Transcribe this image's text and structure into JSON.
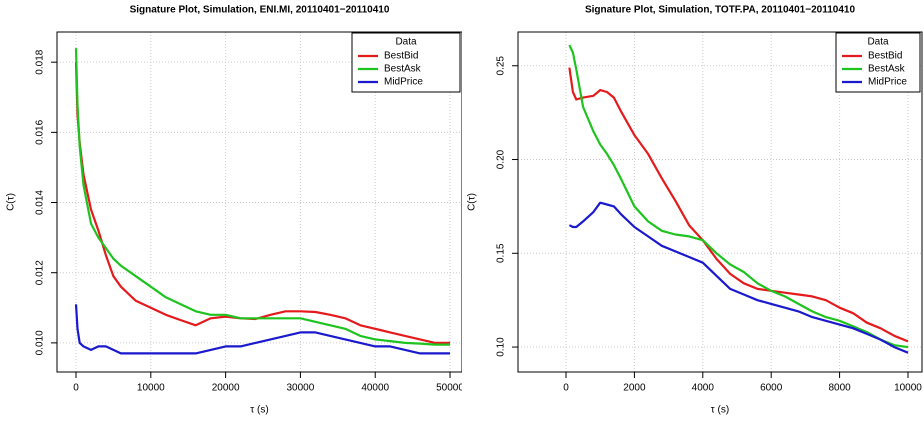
{
  "chart_data": [
    {
      "type": "line",
      "title": "Signature Plot, Simulation, ENI.MI, 20110401−20110410",
      "x_label": "τ (s)",
      "y_label": "C(τ)",
      "legend_title": "Data",
      "legend_position": "top-right",
      "grid": true,
      "x": [
        0,
        200,
        500,
        1000,
        2000,
        3000,
        4000,
        5000,
        6000,
        8000,
        10000,
        12000,
        14000,
        16000,
        18000,
        20000,
        22000,
        24000,
        26000,
        28000,
        30000,
        32000,
        34000,
        36000,
        38000,
        40000,
        42000,
        44000,
        46000,
        48000,
        50000
      ],
      "series": [
        {
          "name": "BestBid",
          "color": "#e41a1c",
          "values": [
            0.018,
            0.0165,
            0.0157,
            0.0148,
            0.0138,
            0.0132,
            0.0125,
            0.0119,
            0.0116,
            0.0112,
            0.011,
            0.0108,
            0.01065,
            0.0105,
            0.0107,
            0.01075,
            0.0107,
            0.01068,
            0.0108,
            0.0109,
            0.0109,
            0.01088,
            0.0108,
            0.0107,
            0.0105,
            0.0104,
            0.0103,
            0.0102,
            0.0101,
            0.01,
            0.01
          ]
        },
        {
          "name": "BestAsk",
          "color": "#1fc31f",
          "values": [
            0.0184,
            0.0168,
            0.0156,
            0.0145,
            0.0134,
            0.013,
            0.0127,
            0.0124,
            0.0122,
            0.0119,
            0.0116,
            0.0113,
            0.0111,
            0.0109,
            0.0108,
            0.0108,
            0.0107,
            0.0107,
            0.0107,
            0.0107,
            0.0107,
            0.0106,
            0.0105,
            0.0104,
            0.0102,
            0.0101,
            0.01005,
            0.01,
            0.00998,
            0.00995,
            0.00995
          ]
        },
        {
          "name": "MidPrice",
          "color": "#1a1acc",
          "values": [
            0.0111,
            0.0104,
            0.01,
            0.0099,
            0.0098,
            0.0099,
            0.0099,
            0.0098,
            0.0097,
            0.0097,
            0.0097,
            0.0097,
            0.0097,
            0.0097,
            0.0098,
            0.0099,
            0.0099,
            0.01,
            0.0101,
            0.0102,
            0.0103,
            0.0103,
            0.0102,
            0.0101,
            0.01,
            0.0099,
            0.0099,
            0.0098,
            0.0097,
            0.0097,
            0.0097
          ]
        }
      ],
      "xlim": [
        -2540,
        51600
      ],
      "xticks": [
        0,
        10000,
        20000,
        30000,
        40000,
        50000
      ],
      "ylim": [
        0.00917,
        0.01886
      ],
      "yticks": [
        {
          "value": 0.01,
          "label": "0.010"
        },
        0.012,
        0.014,
        0.016,
        0.018
      ]
    },
    {
      "type": "line",
      "title": "Signature Plot, Simulation, TOTF.PA, 20110401−20110410",
      "x_label": "τ (s)",
      "y_label": "C(τ)",
      "legend_title": "Data",
      "legend_position": "top-right",
      "grid": true,
      "x": [
        100,
        200,
        300,
        500,
        800,
        1000,
        1200,
        1400,
        1600,
        2000,
        2400,
        2800,
        3200,
        3600,
        4000,
        4400,
        4800,
        5200,
        5600,
        6000,
        6400,
        6800,
        7200,
        7600,
        8000,
        8400,
        8800,
        9200,
        9600,
        10000
      ],
      "series": [
        {
          "name": "BestBid",
          "color": "#e41a1c",
          "values": [
            0.249,
            0.236,
            0.232,
            0.233,
            0.234,
            0.237,
            0.236,
            0.233,
            0.226,
            0.213,
            0.203,
            0.19,
            0.178,
            0.165,
            0.157,
            0.147,
            0.139,
            0.134,
            0.131,
            0.13,
            0.129,
            0.128,
            0.127,
            0.125,
            0.121,
            0.118,
            0.113,
            0.11,
            0.106,
            0.103
          ]
        },
        {
          "name": "BestAsk",
          "color": "#1fc31f",
          "values": [
            0.261,
            0.257,
            0.248,
            0.228,
            0.215,
            0.208,
            0.203,
            0.197,
            0.19,
            0.175,
            0.167,
            0.162,
            0.16,
            0.159,
            0.157,
            0.15,
            0.144,
            0.14,
            0.134,
            0.13,
            0.127,
            0.123,
            0.119,
            0.116,
            0.114,
            0.111,
            0.108,
            0.104,
            0.101,
            0.1
          ]
        },
        {
          "name": "MidPrice",
          "color": "#1a1acc",
          "values": [
            0.165,
            0.164,
            0.164,
            0.167,
            0.172,
            0.177,
            0.176,
            0.175,
            0.171,
            0.164,
            0.159,
            0.154,
            0.151,
            0.148,
            0.145,
            0.138,
            0.131,
            0.128,
            0.125,
            0.123,
            0.121,
            0.119,
            0.116,
            0.114,
            0.112,
            0.11,
            0.107,
            0.104,
            0.1,
            0.097
          ]
        }
      ],
      "xlim": [
        -1404,
        10410
      ],
      "xticks": [
        0,
        2000,
        4000,
        6000,
        8000,
        10000
      ],
      "ylim": [
        0.0867,
        0.268
      ],
      "yticks": [
        {
          "value": 0.1,
          "label": "0.10"
        },
        0.15,
        {
          "value": 0.2,
          "label": "0.20"
        },
        0.25
      ]
    }
  ]
}
